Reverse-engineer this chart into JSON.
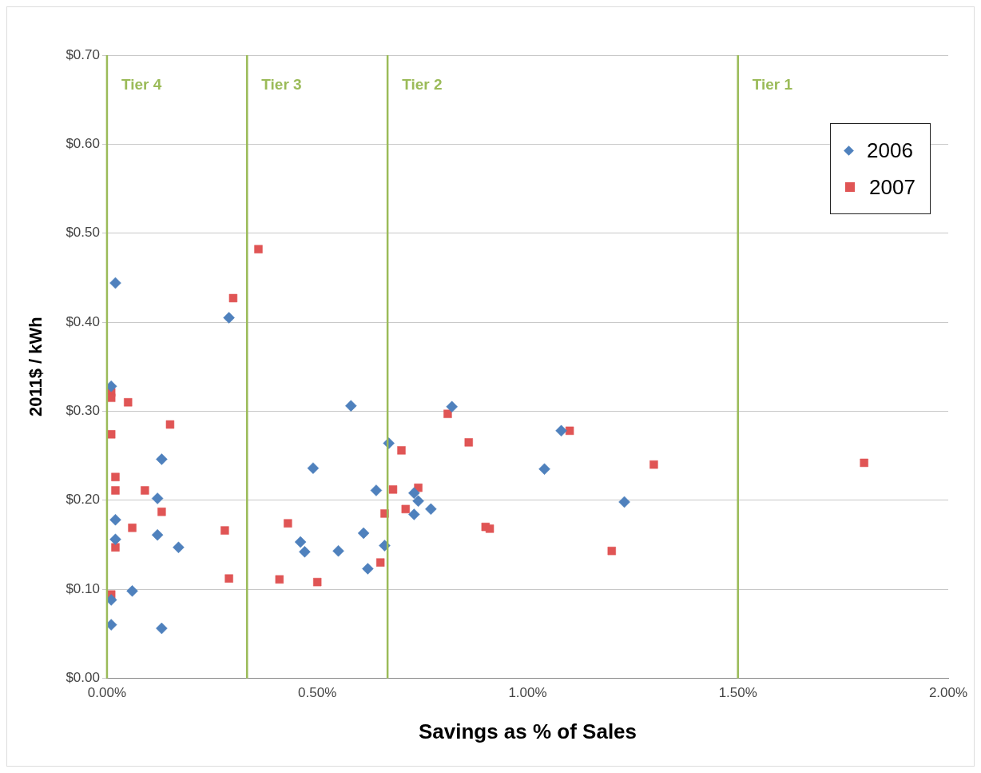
{
  "chart_data": {
    "type": "scatter",
    "xlabel": "Savings as % of Sales",
    "ylabel": "2011$ / kWh",
    "xlim": [
      0,
      2
    ],
    "xticks": [
      {
        "value": 0,
        "label": "0.00%"
      },
      {
        "value": 0.5,
        "label": "0.50%"
      },
      {
        "value": 1,
        "label": "1.00%"
      },
      {
        "value": 1.5,
        "label": "1.50%"
      },
      {
        "value": 2,
        "label": "2.00%"
      }
    ],
    "ylim": [
      0,
      0.7
    ],
    "yticks": [
      {
        "value": 0,
        "label": "$0.00"
      },
      {
        "value": 0.1,
        "label": "$0.10"
      },
      {
        "value": 0.2,
        "label": "$0.20"
      },
      {
        "value": 0.3,
        "label": "$0.30"
      },
      {
        "value": 0.4,
        "label": "$0.40"
      },
      {
        "value": 0.5,
        "label": "$0.50"
      },
      {
        "value": 0.6,
        "label": "$0.60"
      },
      {
        "value": 0.7,
        "label": "$0.70"
      }
    ],
    "grid": "y",
    "legend": "top right",
    "series": [
      {
        "name": "2006",
        "color": "#4f81bd",
        "marker": "diamond",
        "x": [
          0.02,
          0.29,
          0.01,
          0.13,
          0.12,
          0.02,
          0.12,
          0.02,
          0.17,
          0.06,
          0.01,
          0.01,
          0.13,
          0.58,
          0.49,
          0.67,
          0.64,
          0.61,
          0.46,
          0.47,
          0.55,
          0.62,
          0.66,
          0.82,
          0.73,
          0.74,
          0.73,
          0.77,
          1.08,
          1.04,
          1.23
        ],
        "values": [
          0.444,
          0.405,
          0.328,
          0.246,
          0.202,
          0.178,
          0.161,
          0.156,
          0.147,
          0.098,
          0.088,
          0.06,
          0.056,
          0.306,
          0.236,
          0.264,
          0.211,
          0.163,
          0.153,
          0.142,
          0.143,
          0.123,
          0.149,
          0.305,
          0.208,
          0.199,
          0.184,
          0.19,
          0.278,
          0.235,
          0.198
        ]
      },
      {
        "name": "2007",
        "color": "#e05555",
        "marker": "square",
        "x": [
          0.36,
          0.3,
          0.01,
          0.01,
          0.05,
          0.15,
          0.01,
          0.02,
          0.02,
          0.09,
          0.13,
          0.06,
          0.02,
          0.28,
          0.29,
          0.01,
          0.43,
          0.41,
          0.5,
          0.65,
          0.66,
          0.68,
          0.7,
          0.71,
          0.74,
          0.81,
          0.86,
          0.9,
          0.91,
          1.1,
          1.3,
          1.2,
          1.8
        ],
        "values": [
          0.482,
          0.427,
          0.321,
          0.315,
          0.31,
          0.285,
          0.274,
          0.226,
          0.211,
          0.211,
          0.187,
          0.169,
          0.147,
          0.166,
          0.112,
          0.094,
          0.174,
          0.111,
          0.108,
          0.13,
          0.185,
          0.212,
          0.256,
          0.19,
          0.214,
          0.297,
          0.265,
          0.17,
          0.168,
          0.278,
          0.24,
          0.143,
          0.242
        ]
      }
    ],
    "ref_lines": [
      {
        "axis": "x",
        "value": 0,
        "label": "Tier 4",
        "color": "#9bbb59"
      },
      {
        "axis": "x",
        "value": 0.333,
        "label": "Tier 3",
        "color": "#9bbb59"
      },
      {
        "axis": "x",
        "value": 0.667,
        "label": "Tier 2",
        "color": "#9bbb59"
      },
      {
        "axis": "x",
        "value": 1.5,
        "label": "Tier 1",
        "color": "#9bbb59"
      }
    ]
  }
}
